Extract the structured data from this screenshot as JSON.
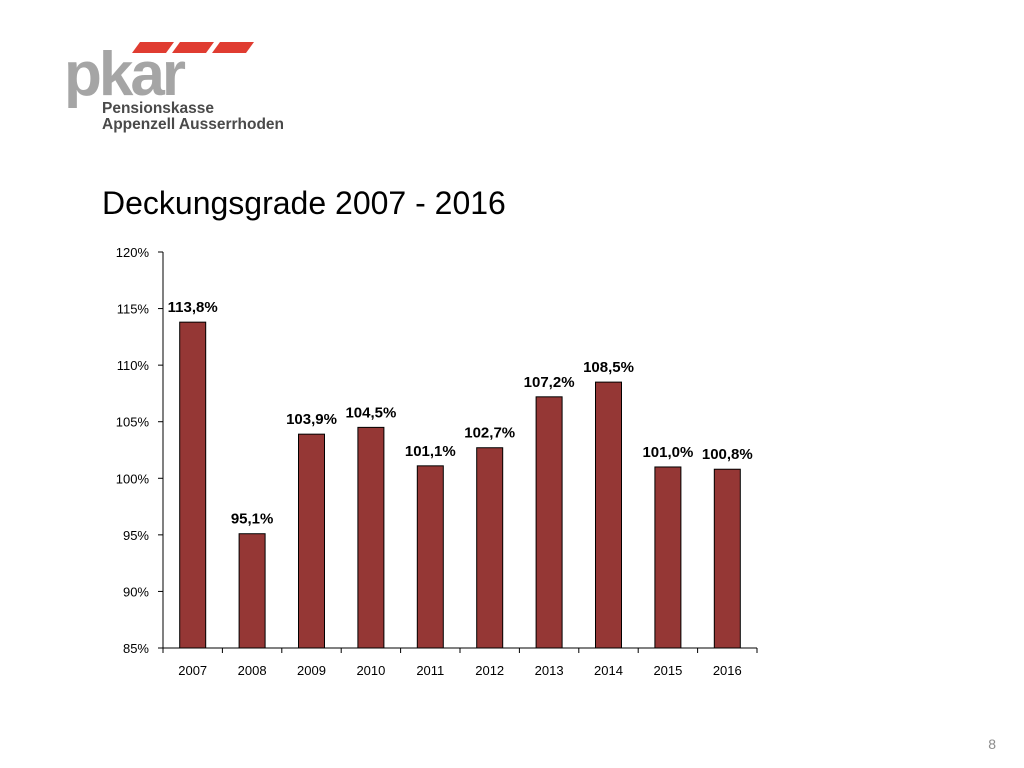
{
  "logo": {
    "mark": "pkar",
    "line1": "Pensionskasse",
    "line2": "Appenzell Ausserrhoden",
    "colors": {
      "stripes": "#e03c31",
      "mark": "#a5a5a5",
      "text": "#4a4a4a"
    }
  },
  "title": "Deckungsgrade 2007 - 2016",
  "page_number": "8",
  "chart_data": {
    "type": "bar",
    "title": "",
    "xlabel": "",
    "ylabel": "",
    "ylim": [
      85,
      120
    ],
    "y_ticks": [
      85,
      90,
      95,
      100,
      105,
      110,
      115,
      120
    ],
    "y_tick_labels": [
      "85%",
      "90%",
      "95%",
      "100%",
      "105%",
      "110%",
      "115%",
      "120%"
    ],
    "categories": [
      "2007",
      "2008",
      "2009",
      "2010",
      "2011",
      "2012",
      "2013",
      "2014",
      "2015",
      "2016"
    ],
    "values": [
      113.8,
      95.1,
      103.9,
      104.5,
      101.1,
      102.7,
      107.2,
      108.5,
      101.0,
      100.8
    ],
    "data_labels": [
      "113,8%",
      "95,1%",
      "103,9%",
      "104,5%",
      "101,1%",
      "102,7%",
      "107,2%",
      "108,5%",
      "101,0%",
      "100,8%"
    ],
    "bar_color": "#953735",
    "grid": false,
    "legend": "none"
  }
}
